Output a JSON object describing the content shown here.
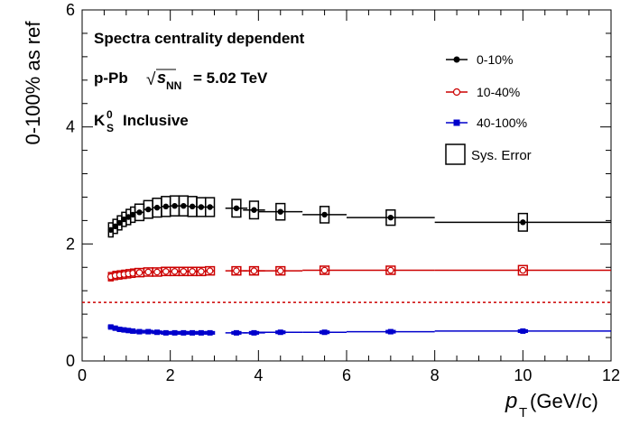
{
  "chart_data": {
    "type": "scatter",
    "title": "",
    "xlabel_main": "p",
    "xlabel_sub": "T",
    "xlabel_unit": "(GeV/c)",
    "ylabel": "0-100% as ref",
    "xlim": [
      0,
      12
    ],
    "ylim": [
      0,
      6
    ],
    "x_ticks": [
      "0",
      "2",
      "4",
      "6",
      "8",
      "10",
      "12"
    ],
    "y_ticks": [
      "0",
      "2",
      "4",
      "6"
    ],
    "grid": false,
    "reference_line": 1.0,
    "reference_color": "#cc0000",
    "annotations": {
      "line1": "Spectra centrality dependent",
      "line2_prefix": "p-Pb",
      "line2_sqrt": "√",
      "line2_s": "s",
      "line2_sub": "NN",
      "line2_suffix": "= 5.02 TeV",
      "line3_k": "K",
      "line3_sup": "0",
      "line3_sub": "S",
      "line3_suffix": "Inclusive"
    },
    "legend_position": "top-right",
    "series": [
      {
        "name": "0-10%",
        "color": "#000000",
        "marker": "filled-circle",
        "x": [
          0.65,
          0.75,
          0.85,
          0.95,
          1.05,
          1.15,
          1.3,
          1.5,
          1.7,
          1.9,
          2.1,
          2.3,
          2.5,
          2.7,
          2.9,
          3.5,
          3.9,
          4.5,
          5.5,
          7.0,
          10.0
        ],
        "y": [
          2.24,
          2.3,
          2.36,
          2.42,
          2.46,
          2.5,
          2.54,
          2.59,
          2.62,
          2.64,
          2.65,
          2.65,
          2.64,
          2.63,
          2.63,
          2.61,
          2.58,
          2.55,
          2.5,
          2.45,
          2.37
        ],
        "xerr": [
          0.05,
          0.05,
          0.05,
          0.05,
          0.05,
          0.05,
          0.1,
          0.1,
          0.1,
          0.1,
          0.1,
          0.1,
          0.1,
          0.1,
          0.1,
          0.25,
          0.25,
          0.5,
          0.5,
          1.0,
          2.0
        ],
        "sys": [
          0.12,
          0.12,
          0.12,
          0.12,
          0.13,
          0.13,
          0.14,
          0.15,
          0.16,
          0.17,
          0.17,
          0.17,
          0.17,
          0.16,
          0.16,
          0.15,
          0.15,
          0.14,
          0.14,
          0.13,
          0.15
        ],
        "boxw": [
          0.1,
          0.1,
          0.1,
          0.1,
          0.1,
          0.1,
          0.2,
          0.2,
          0.2,
          0.2,
          0.2,
          0.2,
          0.2,
          0.2,
          0.2,
          0.2,
          0.2,
          0.2,
          0.2,
          0.2,
          0.2
        ]
      },
      {
        "name": "10-40%",
        "color": "#cc0000",
        "marker": "open-circle",
        "x": [
          0.65,
          0.75,
          0.85,
          0.95,
          1.05,
          1.15,
          1.3,
          1.5,
          1.7,
          1.9,
          2.1,
          2.3,
          2.5,
          2.7,
          2.9,
          3.5,
          3.9,
          4.5,
          5.5,
          7.0,
          10.0
        ],
        "y": [
          1.44,
          1.46,
          1.47,
          1.48,
          1.49,
          1.5,
          1.51,
          1.52,
          1.52,
          1.53,
          1.53,
          1.53,
          1.53,
          1.53,
          1.54,
          1.54,
          1.54,
          1.54,
          1.55,
          1.55,
          1.55
        ],
        "xerr": [
          0.05,
          0.05,
          0.05,
          0.05,
          0.05,
          0.05,
          0.1,
          0.1,
          0.1,
          0.1,
          0.1,
          0.1,
          0.1,
          0.1,
          0.1,
          0.25,
          0.25,
          0.5,
          0.5,
          1.0,
          2.0
        ],
        "sys": [
          0.07,
          0.07,
          0.07,
          0.07,
          0.07,
          0.07,
          0.07,
          0.07,
          0.07,
          0.07,
          0.07,
          0.07,
          0.07,
          0.07,
          0.07,
          0.07,
          0.07,
          0.07,
          0.07,
          0.07,
          0.08
        ],
        "boxw": [
          0.1,
          0.1,
          0.1,
          0.1,
          0.1,
          0.1,
          0.2,
          0.2,
          0.2,
          0.2,
          0.2,
          0.2,
          0.2,
          0.2,
          0.2,
          0.2,
          0.2,
          0.2,
          0.2,
          0.2,
          0.2
        ]
      },
      {
        "name": "40-100%",
        "color": "#0000cc",
        "marker": "filled-square",
        "x": [
          0.65,
          0.75,
          0.85,
          0.95,
          1.05,
          1.15,
          1.3,
          1.5,
          1.7,
          1.9,
          2.1,
          2.3,
          2.5,
          2.7,
          2.9,
          3.5,
          3.9,
          4.5,
          5.5,
          7.0,
          10.0
        ],
        "y": [
          0.58,
          0.56,
          0.54,
          0.53,
          0.52,
          0.51,
          0.5,
          0.5,
          0.49,
          0.48,
          0.48,
          0.48,
          0.48,
          0.48,
          0.48,
          0.48,
          0.48,
          0.49,
          0.49,
          0.5,
          0.51
        ],
        "xerr": [
          0.05,
          0.05,
          0.05,
          0.05,
          0.05,
          0.05,
          0.1,
          0.1,
          0.1,
          0.1,
          0.1,
          0.1,
          0.1,
          0.1,
          0.1,
          0.25,
          0.25,
          0.5,
          0.5,
          1.0,
          2.0
        ],
        "sys": [
          0.02,
          0.02,
          0.02,
          0.02,
          0.02,
          0.02,
          0.02,
          0.02,
          0.02,
          0.02,
          0.02,
          0.02,
          0.02,
          0.02,
          0.02,
          0.02,
          0.02,
          0.02,
          0.02,
          0.02,
          0.02
        ],
        "boxw": [
          0.1,
          0.1,
          0.1,
          0.1,
          0.1,
          0.1,
          0.2,
          0.2,
          0.2,
          0.2,
          0.2,
          0.2,
          0.2,
          0.2,
          0.2,
          0.2,
          0.2,
          0.2,
          0.2,
          0.2,
          0.2
        ]
      }
    ],
    "legend_sys_label": "Sys. Error"
  }
}
